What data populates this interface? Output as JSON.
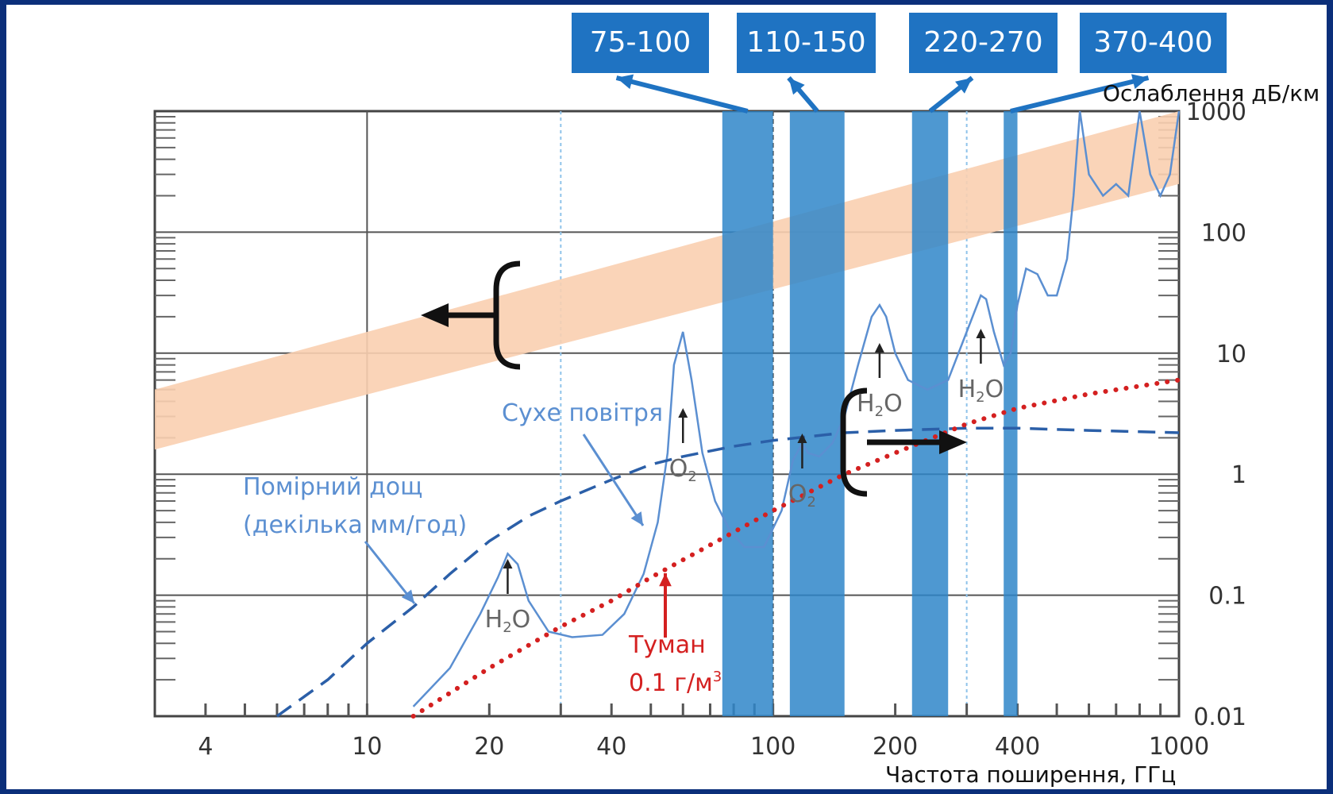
{
  "chart_data": {
    "type": "line",
    "xscale": "log",
    "yscale": "log",
    "xlim": [
      3,
      1000
    ],
    "ylim": [
      0.01,
      1000
    ],
    "x_ticks": [
      "4",
      "10",
      "20",
      "40",
      "100",
      "200",
      "400",
      "1000"
    ],
    "y_ticks": [
      "1000",
      "100",
      "10",
      "1",
      "0.1",
      "0.01"
    ],
    "xlabel": "Частота поширення, ГГц",
    "ylabel": "Ослаблення дБ/км",
    "bands": [
      {
        "label": "75-100",
        "range": [
          75,
          100
        ]
      },
      {
        "label": "110-150",
        "range": [
          110,
          150
        ]
      },
      {
        "label": "220-270",
        "range": [
          220,
          270
        ]
      },
      {
        "label": "370-400",
        "range": [
          370,
          400
        ]
      }
    ],
    "series": [
      {
        "name": "Сухе повітря",
        "style": "solid",
        "color": "#5b8fd1",
        "x": [
          13,
          16,
          19,
          21,
          22.2,
          23.5,
          25,
          28,
          32,
          38,
          43,
          48,
          52,
          55,
          57,
          60,
          63,
          67,
          72,
          78,
          85,
          95,
          105,
          112,
          118,
          122,
          130,
          140,
          150,
          162,
          175,
          183,
          190,
          200,
          215,
          240,
          270,
          300,
          325,
          335,
          350,
          370,
          385,
          400,
          420,
          448,
          475,
          500,
          530,
          550,
          570,
          600,
          650,
          700,
          750,
          800,
          850,
          900,
          950,
          1000
        ],
        "y": [
          0.012,
          0.025,
          0.07,
          0.14,
          0.22,
          0.18,
          0.09,
          0.05,
          0.045,
          0.047,
          0.07,
          0.15,
          0.4,
          1.5,
          8,
          15,
          6,
          1.5,
          0.6,
          0.35,
          0.25,
          0.25,
          0.5,
          1.3,
          1.8,
          1.5,
          1.4,
          1.8,
          3,
          8,
          20,
          25,
          20,
          10,
          6,
          5,
          6,
          15,
          30,
          28,
          15,
          8,
          10,
          25,
          50,
          45,
          30,
          30,
          60,
          200,
          1000,
          300,
          200,
          250,
          200,
          1000,
          300,
          200,
          300,
          1000
        ]
      },
      {
        "name": "Помірний дощ (декілька мм/год)",
        "style": "dashed",
        "color": "#2b5fa8",
        "x": [
          6,
          8,
          10,
          13,
          16,
          20,
          25,
          30,
          40,
          50,
          60,
          80,
          100,
          150,
          200,
          300,
          400,
          600,
          1000
        ],
        "y": [
          0.01,
          0.02,
          0.04,
          0.08,
          0.15,
          0.28,
          0.45,
          0.6,
          0.9,
          1.2,
          1.4,
          1.7,
          1.9,
          2.2,
          2.3,
          2.4,
          2.4,
          2.3,
          2.2
        ]
      },
      {
        "name": "Туман 0.1 г/м³",
        "style": "dotted",
        "color": "#d42020",
        "x": [
          13,
          20,
          30,
          40,
          50,
          70,
          100,
          150,
          200,
          300,
          400,
          600,
          1000
        ],
        "y": [
          0.01,
          0.025,
          0.055,
          0.09,
          0.14,
          0.26,
          0.5,
          1.0,
          1.5,
          2.6,
          3.5,
          4.6,
          6.0
        ]
      }
    ],
    "annotations": [
      {
        "text": "Сухе повітря",
        "color": "#5b8fd1"
      },
      {
        "text": "Помірний дощ",
        "color": "#5b8fd1"
      },
      {
        "text": "(декілька мм/год)",
        "color": "#5b8fd1"
      },
      {
        "text": "Туман",
        "color": "#d42020"
      },
      {
        "text": "0.1 г/м",
        "color": "#d42020"
      },
      {
        "text": "3",
        "color": "#d42020"
      },
      {
        "text": "H",
        "color": "#666666"
      },
      {
        "text": "2",
        "color": "#666666"
      },
      {
        "text": "O",
        "color": "#666666"
      }
    ],
    "colors": {
      "band": "#2f86c9",
      "band_label_bg": "#1f73c2",
      "peach_band": "#f9cfb0",
      "frame": "#0b2f7a"
    }
  }
}
